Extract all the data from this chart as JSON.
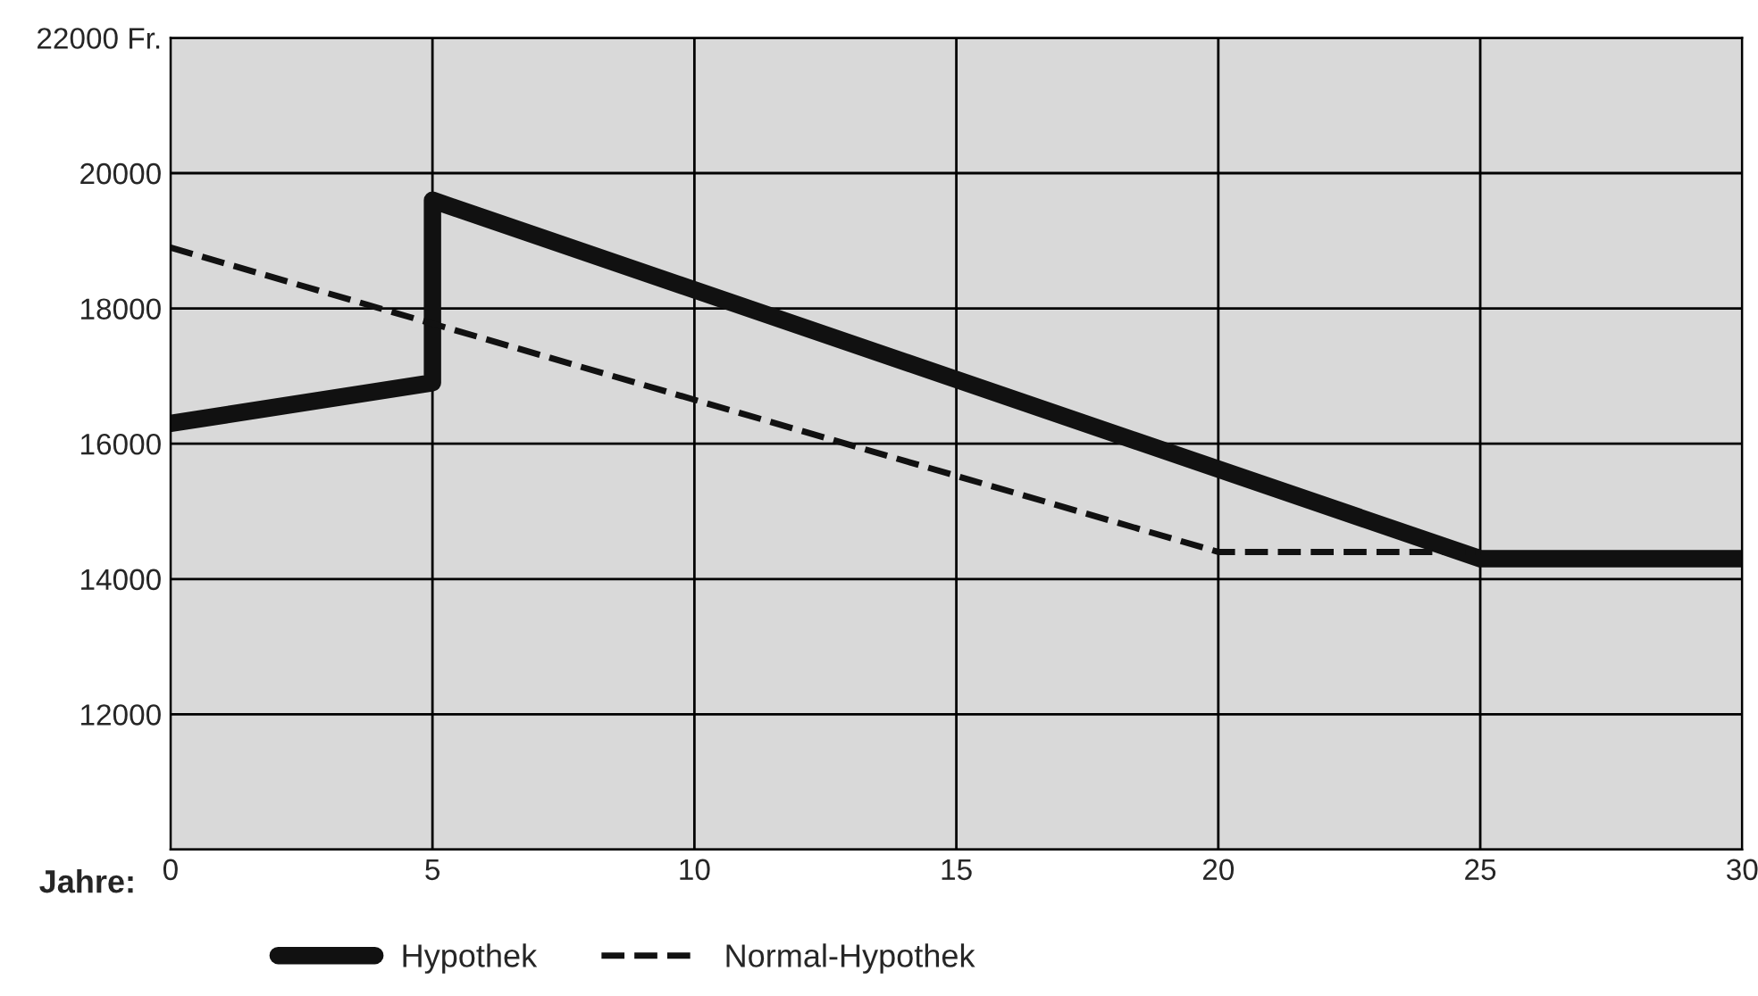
{
  "chart_data": {
    "type": "line",
    "xlabel": "Jahre:",
    "series": [
      {
        "name": "Hypothek",
        "color": "#111111",
        "line_style": "solid",
        "x": [
          0,
          5,
          5,
          25,
          30
        ],
        "values": [
          16300,
          16900,
          19600,
          14300,
          14300
        ]
      },
      {
        "name": "Normal-Hypothek",
        "color": "#111111",
        "line_style": "dashed",
        "x": [
          0,
          20,
          25
        ],
        "values": [
          18900,
          14400,
          14400
        ]
      }
    ],
    "xlim": [
      0,
      30
    ],
    "xticks": [
      0,
      5,
      10,
      15,
      20,
      25,
      30
    ],
    "ylim": [
      10000,
      22000
    ],
    "yticks": [
      {
        "value": 10000,
        "label": null
      },
      12000,
      14000,
      16000,
      18000,
      20000,
      {
        "value": 22000,
        "label": "22000 Fr."
      }
    ],
    "grid": true,
    "legend": "bottom",
    "marker": "none"
  }
}
